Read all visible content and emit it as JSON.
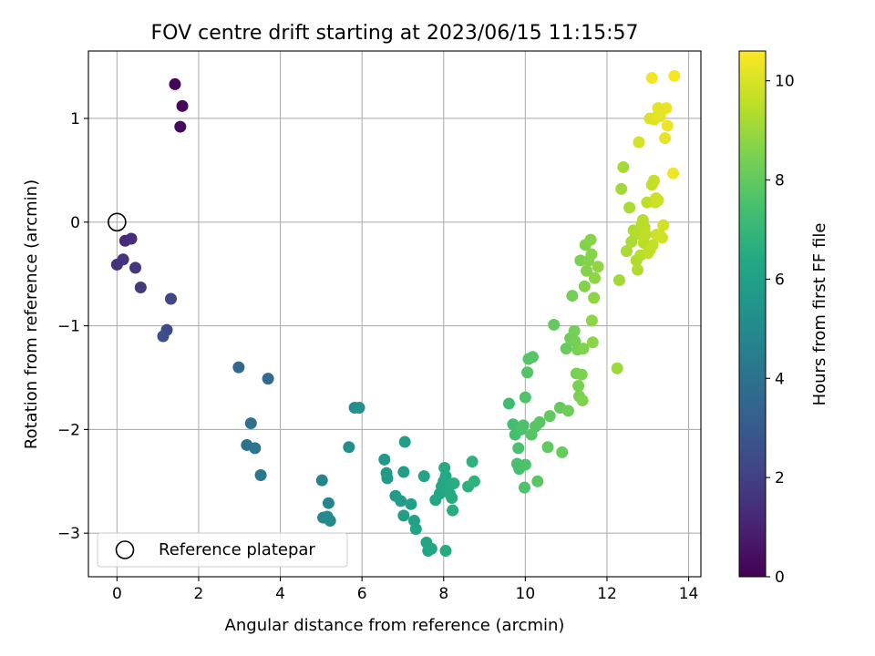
{
  "chart_data": {
    "type": "scatter",
    "title": "FOV centre drift starting at 2023/06/15 11:15:57",
    "xlabel": "Angular distance from reference (arcmin)",
    "ylabel": "Rotation from reference (arcmin)",
    "xlim": [
      -0.7,
      14.3
    ],
    "ylim": [
      -3.42,
      1.65
    ],
    "xticks": [
      0,
      2,
      4,
      6,
      8,
      10,
      12,
      14
    ],
    "xtick_labels": [
      "0",
      "2",
      "4",
      "6",
      "8",
      "10",
      "12",
      "14"
    ],
    "yticks": [
      -3,
      -2,
      -1,
      0,
      1
    ],
    "ytick_labels": [
      "−3",
      "−2",
      "−1",
      "0",
      "1"
    ],
    "grid": true,
    "legend": {
      "position": "lower-left",
      "entries": [
        "Reference platepar"
      ]
    },
    "reference_point": {
      "x": 0,
      "y": 0,
      "label": "Reference platepar"
    },
    "colorbar": {
      "label": "Hours from first FF file",
      "range": [
        0,
        10.6
      ],
      "ticks": [
        0,
        2,
        4,
        6,
        8,
        10
      ],
      "tick_labels": [
        "0",
        "2",
        "4",
        "6",
        "8",
        "10"
      ],
      "colormap": "viridis"
    },
    "series": [
      {
        "columns": [
          "x",
          "y",
          "hours"
        ],
        "points": [
          [
            1.42,
            1.33,
            0.1
          ],
          [
            1.6,
            1.12,
            0.2
          ],
          [
            1.55,
            0.92,
            0.3
          ],
          [
            0.2,
            -0.18,
            1.3
          ],
          [
            0.35,
            -0.16,
            1.4
          ],
          [
            0.0,
            -0.41,
            1.5
          ],
          [
            0.15,
            -0.36,
            1.6
          ],
          [
            0.45,
            -0.44,
            1.7
          ],
          [
            0.58,
            -0.63,
            1.8
          ],
          [
            1.32,
            -0.74,
            2.2
          ],
          [
            1.22,
            -1.04,
            2.4
          ],
          [
            1.13,
            -1.1,
            2.5
          ],
          [
            2.98,
            -1.4,
            3.6
          ],
          [
            3.7,
            -1.51,
            3.7
          ],
          [
            3.28,
            -1.94,
            3.9
          ],
          [
            3.18,
            -2.15,
            4.0
          ],
          [
            3.38,
            -2.18,
            4.1
          ],
          [
            3.52,
            -2.44,
            4.2
          ],
          [
            5.02,
            -2.49,
            4.7
          ],
          [
            5.18,
            -2.71,
            4.8
          ],
          [
            5.05,
            -2.85,
            4.9
          ],
          [
            5.15,
            -2.84,
            5.0
          ],
          [
            5.22,
            -2.88,
            5.05
          ],
          [
            5.68,
            -2.17,
            5.2
          ],
          [
            5.82,
            -1.79,
            5.25
          ],
          [
            5.93,
            -1.79,
            5.3
          ],
          [
            6.55,
            -2.29,
            5.6
          ],
          [
            6.6,
            -2.42,
            5.65
          ],
          [
            6.62,
            -2.47,
            5.7
          ],
          [
            6.82,
            -2.64,
            5.75
          ],
          [
            6.95,
            -2.69,
            5.8
          ],
          [
            7.02,
            -2.41,
            5.85
          ],
          [
            7.05,
            -2.12,
            5.9
          ],
          [
            7.02,
            -2.83,
            5.95
          ],
          [
            7.2,
            -2.72,
            6.0
          ],
          [
            7.28,
            -2.88,
            6.05
          ],
          [
            7.32,
            -2.96,
            6.1
          ],
          [
            7.52,
            -2.45,
            6.15
          ],
          [
            7.58,
            -3.09,
            6.2
          ],
          [
            7.62,
            -3.17,
            6.2
          ],
          [
            7.7,
            -3.15,
            6.25
          ],
          [
            7.8,
            -2.68,
            6.3
          ],
          [
            7.9,
            -2.62,
            6.3
          ],
          [
            7.95,
            -2.55,
            6.35
          ],
          [
            8.0,
            -2.5,
            6.35
          ],
          [
            8.05,
            -2.45,
            6.4
          ],
          [
            8.1,
            -2.58,
            6.4
          ],
          [
            8.15,
            -2.62,
            6.45
          ],
          [
            8.02,
            -2.37,
            6.45
          ],
          [
            8.05,
            -3.17,
            6.5
          ],
          [
            8.2,
            -2.66,
            6.5
          ],
          [
            8.22,
            -2.78,
            6.55
          ],
          [
            8.25,
            -2.52,
            6.55
          ],
          [
            8.6,
            -2.55,
            6.7
          ],
          [
            8.7,
            -2.31,
            6.75
          ],
          [
            8.75,
            -2.5,
            6.8
          ],
          [
            9.6,
            -1.75,
            7.3
          ],
          [
            9.7,
            -1.95,
            7.35
          ],
          [
            9.75,
            -2.05,
            7.4
          ],
          [
            9.8,
            -2.33,
            7.45
          ],
          [
            9.85,
            -2.38,
            7.45
          ],
          [
            9.83,
            -2.18,
            7.5
          ],
          [
            9.9,
            -2.0,
            7.55
          ],
          [
            9.95,
            -1.96,
            7.55
          ],
          [
            9.98,
            -2.56,
            7.6
          ],
          [
            10.0,
            -2.34,
            7.6
          ],
          [
            10.0,
            -1.69,
            7.65
          ],
          [
            10.05,
            -1.45,
            7.7
          ],
          [
            10.08,
            -1.32,
            7.75
          ],
          [
            10.15,
            -2.05,
            7.75
          ],
          [
            10.18,
            -1.3,
            7.8
          ],
          [
            10.25,
            -1.97,
            7.8
          ],
          [
            10.3,
            -2.5,
            7.85
          ],
          [
            10.35,
            -1.93,
            7.85
          ],
          [
            10.55,
            -2.17,
            7.95
          ],
          [
            10.6,
            -1.87,
            8.0
          ],
          [
            10.7,
            -0.99,
            8.05
          ],
          [
            10.85,
            -1.79,
            8.05
          ],
          [
            10.9,
            -2.22,
            8.1
          ],
          [
            11.0,
            -1.22,
            8.15
          ],
          [
            11.05,
            -1.82,
            8.2
          ],
          [
            11.1,
            -1.12,
            8.25
          ],
          [
            11.15,
            -0.71,
            8.3
          ],
          [
            11.2,
            -1.05,
            8.35
          ],
          [
            11.22,
            -1.15,
            8.35
          ],
          [
            11.25,
            -1.46,
            8.4
          ],
          [
            11.28,
            -1.23,
            8.4
          ],
          [
            11.3,
            -1.58,
            8.45
          ],
          [
            11.32,
            -1.68,
            8.45
          ],
          [
            11.35,
            -0.37,
            8.5
          ],
          [
            11.38,
            -1.47,
            8.5
          ],
          [
            11.4,
            -1.72,
            8.55
          ],
          [
            11.42,
            -1.22,
            8.55
          ],
          [
            11.45,
            -0.62,
            8.6
          ],
          [
            11.47,
            -0.22,
            8.6
          ],
          [
            11.5,
            -0.47,
            8.65
          ],
          [
            11.55,
            -0.37,
            8.65
          ],
          [
            11.6,
            -0.17,
            8.7
          ],
          [
            11.62,
            -0.31,
            8.7
          ],
          [
            11.63,
            -0.95,
            8.75
          ],
          [
            11.65,
            -1.16,
            8.75
          ],
          [
            11.68,
            -0.73,
            8.8
          ],
          [
            11.7,
            -0.54,
            8.8
          ],
          [
            11.78,
            -0.43,
            8.85
          ],
          [
            12.25,
            -1.41,
            9.05
          ],
          [
            12.3,
            -0.56,
            9.1
          ],
          [
            12.35,
            0.32,
            9.1
          ],
          [
            12.4,
            0.53,
            9.15
          ],
          [
            12.48,
            -0.28,
            9.2
          ],
          [
            12.55,
            0.14,
            9.2
          ],
          [
            12.6,
            -0.19,
            9.25
          ],
          [
            12.65,
            -0.08,
            9.3
          ],
          [
            12.7,
            -0.12,
            9.3
          ],
          [
            12.72,
            -0.37,
            9.35
          ],
          [
            12.75,
            -0.46,
            9.35
          ],
          [
            12.78,
            -0.1,
            9.4
          ],
          [
            12.82,
            -0.32,
            9.4
          ],
          [
            12.85,
            -0.02,
            9.45
          ],
          [
            12.88,
            0.02,
            9.45
          ],
          [
            12.9,
            -0.2,
            9.5
          ],
          [
            12.92,
            -0.05,
            9.5
          ],
          [
            12.95,
            -0.12,
            9.55
          ],
          [
            12.98,
            0.19,
            9.55
          ],
          [
            13.0,
            -0.3,
            9.6
          ],
          [
            13.05,
            -0.27,
            9.6
          ],
          [
            13.1,
            0.36,
            9.65
          ],
          [
            13.12,
            -0.22,
            9.65
          ],
          [
            13.15,
            0.4,
            9.7
          ],
          [
            13.18,
            0.19,
            9.7
          ],
          [
            13.2,
            0.23,
            9.75
          ],
          [
            13.22,
            -0.12,
            9.75
          ],
          [
            13.25,
            0.21,
            9.8
          ],
          [
            13.3,
            -0.13,
            9.8
          ],
          [
            13.35,
            -0.15,
            9.85
          ],
          [
            13.38,
            -0.03,
            9.85
          ],
          [
            12.78,
            0.77,
            9.9
          ],
          [
            13.05,
            1.0,
            10.0
          ],
          [
            13.15,
            0.99,
            10.05
          ],
          [
            13.2,
            1.01,
            10.1
          ],
          [
            13.25,
            1.1,
            10.15
          ],
          [
            13.3,
            1.02,
            10.2
          ],
          [
            13.42,
            0.81,
            10.25
          ],
          [
            13.45,
            1.1,
            10.25
          ],
          [
            13.48,
            0.93,
            10.3
          ],
          [
            13.1,
            1.39,
            10.4
          ],
          [
            13.62,
            0.47,
            10.4
          ],
          [
            13.65,
            1.41,
            10.5
          ]
        ]
      }
    ]
  }
}
